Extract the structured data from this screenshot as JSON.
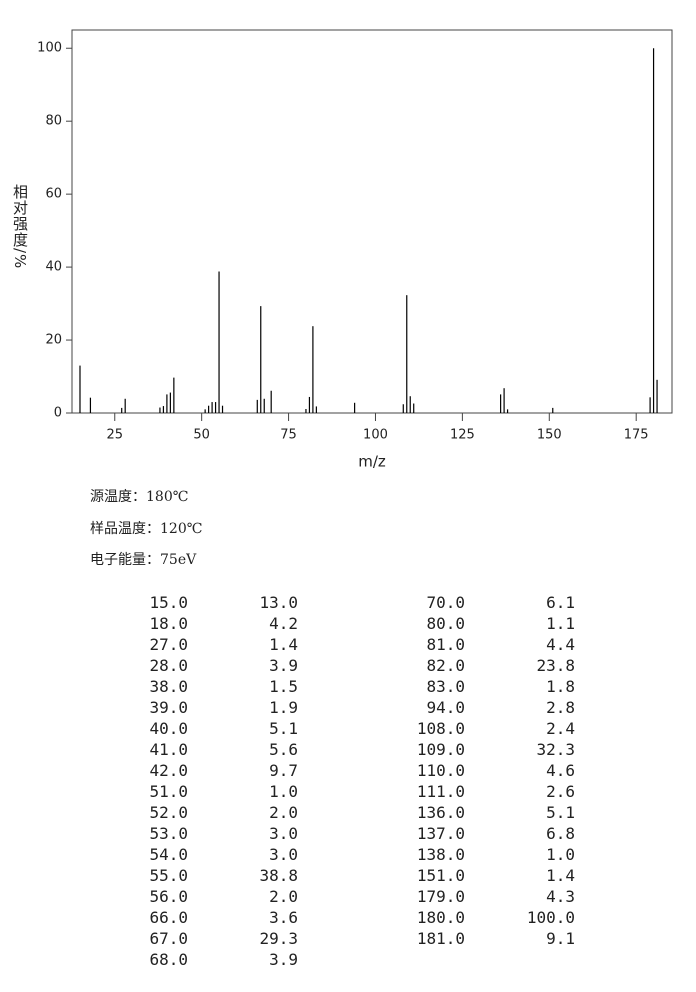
{
  "chart_data": {
    "type": "bar",
    "ylabel": "相对强度/%",
    "xlabel": "m/z",
    "x": [
      15,
      18,
      27,
      28,
      38,
      39,
      40,
      41,
      42,
      51,
      52,
      53,
      54,
      55,
      56,
      66,
      67,
      68,
      70,
      80,
      81,
      82,
      83,
      94,
      108,
      109,
      110,
      111,
      136,
      137,
      138,
      151,
      179,
      180,
      181
    ],
    "values": [
      13.0,
      4.2,
      1.4,
      3.9,
      1.5,
      1.9,
      5.1,
      5.6,
      9.7,
      1.0,
      2.0,
      3.0,
      3.0,
      38.8,
      2.0,
      3.6,
      29.3,
      3.9,
      6.1,
      1.1,
      4.4,
      23.8,
      1.8,
      2.8,
      2.4,
      32.3,
      4.6,
      2.6,
      5.1,
      6.8,
      1.0,
      1.4,
      4.3,
      100.0,
      9.1
    ],
    "color": "#000000",
    "xlim": [
      12.7,
      185.3
    ],
    "xticks": [
      25,
      50,
      75,
      100,
      125,
      150,
      175
    ],
    "ylim": [
      0,
      105
    ],
    "yticks": [
      0,
      20,
      40,
      60,
      80,
      100
    ]
  },
  "info": [
    "源温度：180℃",
    "样品温度：120℃",
    "电子能量：75eV"
  ],
  "table": {
    "rows": [
      [
        "15.0",
        "13.0"
      ],
      [
        "18.0",
        "4.2"
      ],
      [
        "27.0",
        "1.4"
      ],
      [
        "28.0",
        "3.9"
      ],
      [
        "38.0",
        "1.5"
      ],
      [
        "39.0",
        "1.9"
      ],
      [
        "40.0",
        "5.1"
      ],
      [
        "41.0",
        "5.6"
      ],
      [
        "42.0",
        "9.7"
      ],
      [
        "51.0",
        "1.0"
      ],
      [
        "52.0",
        "2.0"
      ],
      [
        "53.0",
        "3.0"
      ],
      [
        "54.0",
        "3.0"
      ],
      [
        "55.0",
        "38.8"
      ],
      [
        "56.0",
        "2.0"
      ],
      [
        "66.0",
        "3.6"
      ],
      [
        "67.0",
        "29.3"
      ],
      [
        "68.0",
        "3.9"
      ],
      [
        "70.0",
        "6.1"
      ],
      [
        "80.0",
        "1.1"
      ],
      [
        "81.0",
        "4.4"
      ],
      [
        "82.0",
        "23.8"
      ],
      [
        "83.0",
        "1.8"
      ],
      [
        "94.0",
        "2.8"
      ],
      [
        "108.0",
        "2.4"
      ],
      [
        "109.0",
        "32.3"
      ],
      [
        "110.0",
        "4.6"
      ],
      [
        "111.0",
        "2.6"
      ],
      [
        "136.0",
        "5.1"
      ],
      [
        "137.0",
        "6.8"
      ],
      [
        "138.0",
        "1.0"
      ],
      [
        "151.0",
        "1.4"
      ],
      [
        "179.0",
        "4.3"
      ],
      [
        "180.0",
        "100.0"
      ],
      [
        "181.0",
        "9.1"
      ]
    ]
  }
}
